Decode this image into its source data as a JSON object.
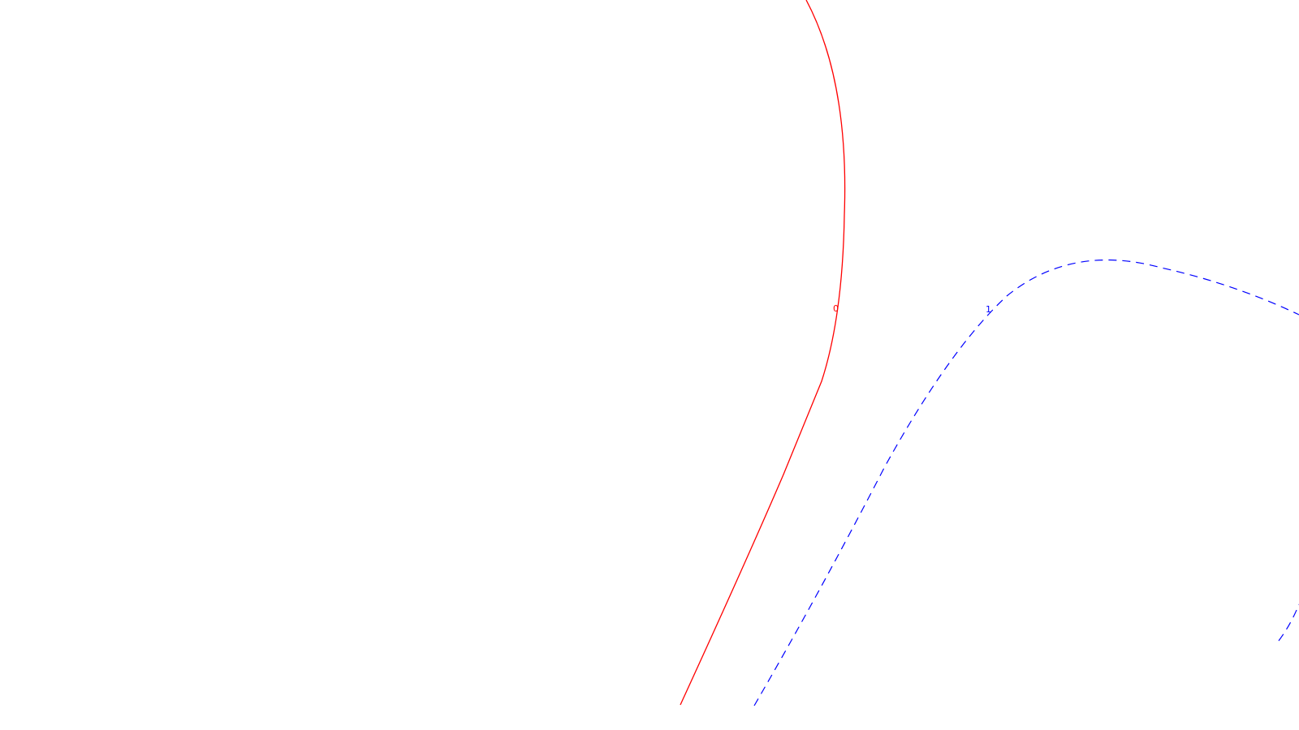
{
  "colors": {
    "background": "#ffffff",
    "primary_curve": "#ff0000",
    "secondary_curve": "#0000ff"
  },
  "curves": [
    {
      "label": "0",
      "style": "solid",
      "color": "#ff0000"
    },
    {
      "label": "1",
      "style": "dashed",
      "color": "#0000ff"
    }
  ]
}
